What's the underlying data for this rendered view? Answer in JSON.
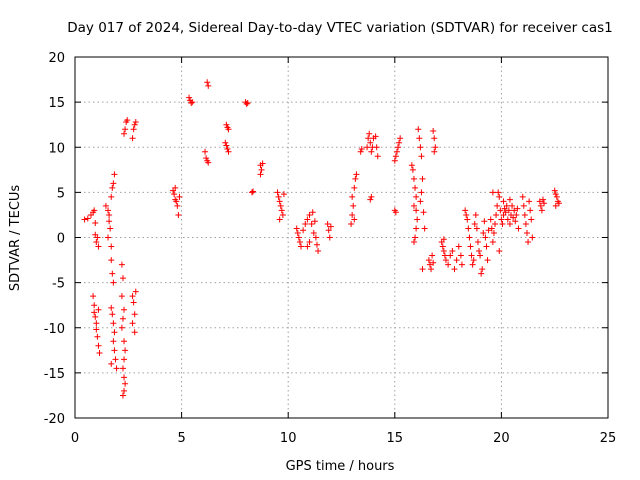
{
  "chart_data": {
    "type": "scatter",
    "title": "Day 017 of 2024, Sidereal Day-to-day VTEC variation (SDTVAR) for receiver cas1",
    "xlabel": "GPS time / hours",
    "ylabel": "SDTVAR / TECUs",
    "xlim": [
      0,
      25
    ],
    "ylim": [
      -20,
      20
    ],
    "xticks": [
      "0",
      "5",
      "10",
      "15",
      "20",
      "25"
    ],
    "yticks": [
      "-20",
      "-15",
      "-10",
      "-5",
      "0",
      "5",
      "10",
      "15",
      "20"
    ],
    "grid": true,
    "marker": "plus",
    "color": "#ff0000",
    "series": [
      {
        "name": "SDTVAR",
        "points": [
          [
            0.45,
            2.0
          ],
          [
            0.6,
            2.1
          ],
          [
            0.75,
            2.5
          ],
          [
            0.85,
            2.8
          ],
          [
            0.9,
            3.0
          ],
          [
            0.95,
            1.6
          ],
          [
            0.95,
            0.3
          ],
          [
            1.0,
            -0.5
          ],
          [
            1.05,
            0.0
          ],
          [
            1.1,
            -1.0
          ],
          [
            0.85,
            -6.5
          ],
          [
            0.9,
            -7.5
          ],
          [
            0.9,
            -8.3
          ],
          [
            0.95,
            -8.8
          ],
          [
            1.0,
            -9.5
          ],
          [
            1.0,
            -10.2
          ],
          [
            1.05,
            -11.0
          ],
          [
            1.1,
            -12.0
          ],
          [
            1.15,
            -12.8
          ],
          [
            1.1,
            -8.0
          ],
          [
            1.45,
            3.5
          ],
          [
            1.55,
            3.0
          ],
          [
            1.6,
            2.5
          ],
          [
            1.6,
            1.8
          ],
          [
            1.65,
            1.0
          ],
          [
            1.55,
            0.0
          ],
          [
            1.7,
            4.5
          ],
          [
            1.75,
            5.5
          ],
          [
            1.8,
            6.0
          ],
          [
            1.85,
            7.0
          ],
          [
            1.7,
            -1.0
          ],
          [
            1.7,
            -2.5
          ],
          [
            1.75,
            -4.0
          ],
          [
            1.8,
            -5.0
          ],
          [
            1.7,
            -7.8
          ],
          [
            1.75,
            -8.5
          ],
          [
            1.8,
            -9.5
          ],
          [
            1.85,
            -10.5
          ],
          [
            1.8,
            -11.5
          ],
          [
            1.85,
            -12.5
          ],
          [
            1.9,
            -13.5
          ],
          [
            1.95,
            -14.5
          ],
          [
            1.7,
            -14.0
          ],
          [
            2.2,
            -3.0
          ],
          [
            2.25,
            -4.5
          ],
          [
            2.2,
            -6.5
          ],
          [
            2.3,
            -8.0
          ],
          [
            2.25,
            -9.0
          ],
          [
            2.2,
            -10.0
          ],
          [
            2.3,
            -11.5
          ],
          [
            2.35,
            -12.5
          ],
          [
            2.3,
            -13.5
          ],
          [
            2.25,
            -14.5
          ],
          [
            2.3,
            -15.5
          ],
          [
            2.35,
            -16.2
          ],
          [
            2.3,
            -17.0
          ],
          [
            2.25,
            -17.5
          ],
          [
            2.3,
            11.5
          ],
          [
            2.35,
            12.0
          ],
          [
            2.4,
            12.8
          ],
          [
            2.45,
            13.0
          ],
          [
            2.7,
            -6.5
          ],
          [
            2.75,
            -7.2
          ],
          [
            2.8,
            -8.5
          ],
          [
            2.7,
            -9.5
          ],
          [
            2.8,
            -10.5
          ],
          [
            2.85,
            -6.0
          ],
          [
            2.7,
            11.0
          ],
          [
            2.75,
            12.0
          ],
          [
            2.8,
            12.5
          ],
          [
            2.85,
            12.8
          ],
          [
            4.6,
            5.2
          ],
          [
            4.65,
            4.8
          ],
          [
            4.7,
            4.2
          ],
          [
            4.75,
            4.0
          ],
          [
            4.8,
            3.5
          ],
          [
            4.85,
            2.5
          ],
          [
            4.9,
            4.5
          ],
          [
            4.7,
            5.5
          ],
          [
            5.35,
            15.5
          ],
          [
            5.4,
            15.2
          ],
          [
            5.45,
            14.9
          ],
          [
            5.5,
            15.0
          ],
          [
            6.2,
            17.2
          ],
          [
            6.25,
            16.8
          ],
          [
            6.1,
            9.5
          ],
          [
            6.15,
            8.8
          ],
          [
            6.2,
            8.5
          ],
          [
            6.25,
            8.3
          ],
          [
            7.05,
            10.5
          ],
          [
            7.1,
            10.2
          ],
          [
            7.15,
            9.8
          ],
          [
            7.2,
            9.5
          ],
          [
            7.1,
            12.5
          ],
          [
            7.15,
            12.2
          ],
          [
            7.2,
            12.0
          ],
          [
            8.0,
            15.0
          ],
          [
            8.05,
            14.8
          ],
          [
            8.1,
            14.9
          ],
          [
            8.3,
            5.0
          ],
          [
            8.35,
            5.1
          ],
          [
            8.7,
            8.0
          ],
          [
            8.75,
            7.5
          ],
          [
            8.8,
            8.2
          ],
          [
            8.7,
            7.0
          ],
          [
            9.5,
            5.0
          ],
          [
            9.55,
            4.5
          ],
          [
            9.6,
            4.0
          ],
          [
            9.65,
            3.5
          ],
          [
            9.7,
            3.0
          ],
          [
            9.75,
            2.5
          ],
          [
            9.8,
            4.8
          ],
          [
            9.6,
            2.0
          ],
          [
            10.4,
            1.0
          ],
          [
            10.45,
            0.5
          ],
          [
            10.5,
            0.0
          ],
          [
            10.55,
            -0.5
          ],
          [
            10.6,
            -1.0
          ],
          [
            10.7,
            0.8
          ],
          [
            10.8,
            1.5
          ],
          [
            10.9,
            2.0
          ],
          [
            11.0,
            2.5
          ],
          [
            11.1,
            1.5
          ],
          [
            11.2,
            0.5
          ],
          [
            11.3,
            0.0
          ],
          [
            11.35,
            -0.8
          ],
          [
            11.4,
            -1.5
          ],
          [
            11.0,
            -0.5
          ],
          [
            10.9,
            -1.0
          ],
          [
            11.15,
            2.8
          ],
          [
            11.25,
            1.8
          ],
          [
            11.85,
            1.5
          ],
          [
            11.9,
            0.8
          ],
          [
            11.95,
            0.0
          ],
          [
            12.0,
            1.2
          ],
          [
            12.95,
            1.5
          ],
          [
            13.0,
            2.5
          ],
          [
            13.05,
            3.5
          ],
          [
            13.0,
            4.5
          ],
          [
            13.1,
            5.5
          ],
          [
            13.15,
            6.5
          ],
          [
            13.2,
            7.0
          ],
          [
            13.1,
            2.0
          ],
          [
            13.4,
            9.5
          ],
          [
            13.45,
            9.8
          ],
          [
            13.7,
            10.0
          ],
          [
            13.75,
            11.0
          ],
          [
            13.8,
            11.5
          ],
          [
            13.85,
            10.5
          ],
          [
            13.9,
            9.5
          ],
          [
            13.95,
            10.0
          ],
          [
            14.0,
            11.0
          ],
          [
            14.1,
            11.2
          ],
          [
            14.15,
            10.0
          ],
          [
            14.2,
            9.0
          ],
          [
            13.85,
            4.2
          ],
          [
            13.9,
            4.5
          ],
          [
            15.0,
            8.5
          ],
          [
            15.05,
            9.0
          ],
          [
            15.1,
            9.5
          ],
          [
            15.15,
            10.0
          ],
          [
            15.2,
            10.5
          ],
          [
            15.25,
            11.0
          ],
          [
            15.0,
            3.0
          ],
          [
            15.05,
            2.8
          ],
          [
            15.8,
            8.0
          ],
          [
            15.85,
            7.5
          ],
          [
            15.9,
            6.5
          ],
          [
            15.95,
            5.5
          ],
          [
            16.0,
            4.5
          ],
          [
            15.9,
            3.5
          ],
          [
            16.0,
            3.0
          ],
          [
            16.05,
            2.0
          ],
          [
            16.0,
            1.0
          ],
          [
            15.95,
            0.0
          ],
          [
            15.9,
            -0.5
          ],
          [
            16.1,
            12.0
          ],
          [
            16.15,
            11.0
          ],
          [
            16.2,
            10.0
          ],
          [
            16.25,
            9.0
          ],
          [
            16.3,
            6.5
          ],
          [
            16.25,
            5.0
          ],
          [
            16.2,
            4.0
          ],
          [
            16.35,
            2.8
          ],
          [
            16.4,
            1.0
          ],
          [
            16.3,
            -3.5
          ],
          [
            16.6,
            -2.5
          ],
          [
            16.65,
            -3.0
          ],
          [
            16.7,
            -3.5
          ],
          [
            16.75,
            -2.0
          ],
          [
            16.8,
            -2.8
          ],
          [
            16.8,
            11.8
          ],
          [
            16.85,
            11.0
          ],
          [
            16.9,
            10.0
          ],
          [
            16.85,
            9.5
          ],
          [
            17.2,
            -0.5
          ],
          [
            17.25,
            -1.0
          ],
          [
            17.3,
            -1.5
          ],
          [
            17.35,
            -2.0
          ],
          [
            17.4,
            -2.5
          ],
          [
            17.5,
            -3.0
          ],
          [
            17.6,
            -2.0
          ],
          [
            17.7,
            -1.5
          ],
          [
            17.8,
            -3.5
          ],
          [
            17.9,
            -2.5
          ],
          [
            18.0,
            -1.0
          ],
          [
            18.1,
            -2.0
          ],
          [
            18.15,
            -3.0
          ],
          [
            17.3,
            -0.2
          ],
          [
            18.3,
            3.0
          ],
          [
            18.35,
            2.5
          ],
          [
            18.4,
            2.0
          ],
          [
            18.45,
            1.0
          ],
          [
            18.5,
            0.0
          ],
          [
            18.55,
            -1.0
          ],
          [
            18.6,
            -2.0
          ],
          [
            18.65,
            -3.0
          ],
          [
            18.7,
            -2.5
          ],
          [
            18.75,
            1.5
          ],
          [
            18.8,
            2.5
          ],
          [
            18.85,
            1.0
          ],
          [
            18.9,
            -0.5
          ],
          [
            18.95,
            -1.5
          ],
          [
            19.0,
            -2.0
          ],
          [
            19.05,
            -4.0
          ],
          [
            19.1,
            -3.5
          ],
          [
            19.15,
            0.5
          ],
          [
            19.2,
            1.8
          ],
          [
            19.25,
            0.0
          ],
          [
            19.3,
            -1.0
          ],
          [
            19.35,
            -2.5
          ],
          [
            19.4,
            0.8
          ],
          [
            19.5,
            2.0
          ],
          [
            19.55,
            1.0
          ],
          [
            19.6,
            -0.5
          ],
          [
            19.65,
            0.5
          ],
          [
            19.7,
            1.5
          ],
          [
            19.75,
            2.5
          ],
          [
            19.8,
            3.5
          ],
          [
            19.85,
            5.0
          ],
          [
            19.9,
            4.5
          ],
          [
            19.95,
            3.0
          ],
          [
            20.0,
            2.0
          ],
          [
            20.05,
            1.5
          ],
          [
            20.1,
            2.5
          ],
          [
            20.15,
            3.2
          ],
          [
            20.2,
            2.8
          ],
          [
            20.25,
            3.5
          ],
          [
            20.3,
            2.0
          ],
          [
            20.35,
            3.0
          ],
          [
            20.4,
            1.5
          ],
          [
            20.45,
            2.5
          ],
          [
            20.5,
            3.5
          ],
          [
            20.55,
            2.2
          ],
          [
            20.6,
            3.0
          ],
          [
            20.65,
            1.8
          ],
          [
            20.7,
            2.5
          ],
          [
            20.75,
            3.2
          ],
          [
            20.8,
            1.0
          ],
          [
            19.6,
            5.0
          ],
          [
            19.9,
            -1.5
          ],
          [
            20.1,
            4.0
          ],
          [
            20.4,
            4.2
          ],
          [
            21.0,
            4.5
          ],
          [
            21.05,
            3.5
          ],
          [
            21.1,
            2.5
          ],
          [
            21.15,
            1.5
          ],
          [
            21.2,
            0.5
          ],
          [
            21.25,
            -0.5
          ],
          [
            21.3,
            4.0
          ],
          [
            21.35,
            3.0
          ],
          [
            21.4,
            2.0
          ],
          [
            21.45,
            0.0
          ],
          [
            21.8,
            4.0
          ],
          [
            21.85,
            3.5
          ],
          [
            21.9,
            3.0
          ],
          [
            21.95,
            4.2
          ],
          [
            22.0,
            3.8
          ],
          [
            22.5,
            5.2
          ],
          [
            22.55,
            4.8
          ],
          [
            22.6,
            4.5
          ],
          [
            22.65,
            4.0
          ],
          [
            22.7,
            3.8
          ],
          [
            22.55,
            3.5
          ]
        ]
      }
    ]
  }
}
